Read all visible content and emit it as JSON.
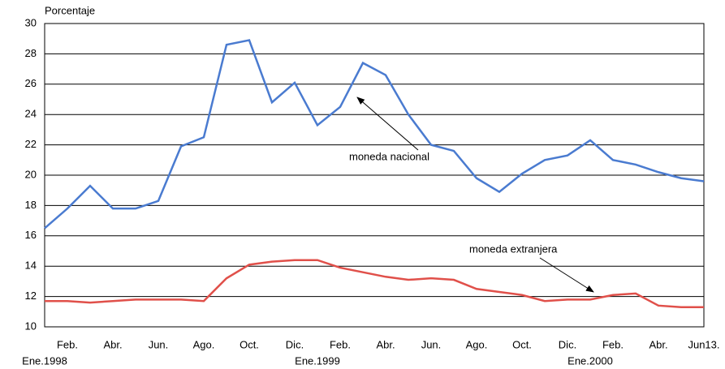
{
  "chart_data": {
    "type": "line",
    "y_label": "Porcentaje",
    "categories": [
      "Ene.1998",
      "Feb.",
      null,
      "Abr.",
      null,
      "Jun.",
      null,
      "Ago.",
      null,
      "Oct.",
      null,
      "Dic.",
      "Ene.1999",
      "Feb.",
      null,
      "Abr.",
      null,
      "Jun.",
      null,
      "Ago.",
      null,
      "Oct.",
      null,
      "Dic.",
      "Ene.2000",
      "Feb.",
      null,
      "Abr.",
      null,
      "Jun13."
    ],
    "series": [
      {
        "name": "moneda nacional",
        "color": "#4a7bd0",
        "values": [
          16.5,
          17.8,
          19.3,
          17.8,
          17.8,
          18.3,
          21.9,
          22.5,
          28.6,
          28.9,
          24.8,
          26.1,
          23.3,
          24.5,
          27.4,
          26.6,
          24.0,
          22.0,
          21.6,
          19.8,
          18.9,
          20.1,
          21.0,
          21.3,
          22.3,
          21.0,
          20.7,
          20.2,
          19.8,
          19.6
        ]
      },
      {
        "name": "moneda extranjera",
        "color": "#e0504a",
        "values": [
          11.7,
          11.7,
          11.6,
          11.7,
          11.8,
          11.8,
          11.8,
          11.7,
          13.2,
          14.1,
          14.3,
          14.4,
          14.4,
          13.9,
          13.6,
          13.3,
          13.1,
          13.2,
          13.1,
          12.5,
          12.3,
          12.1,
          11.7,
          11.8,
          11.8,
          12.1,
          12.2,
          11.4,
          11.3,
          11.3
        ]
      }
    ],
    "ylim": [
      10,
      30
    ],
    "yticks": [
      10,
      12,
      14,
      16,
      18,
      20,
      22,
      24,
      26,
      28,
      30
    ],
    "grid": true
  }
}
